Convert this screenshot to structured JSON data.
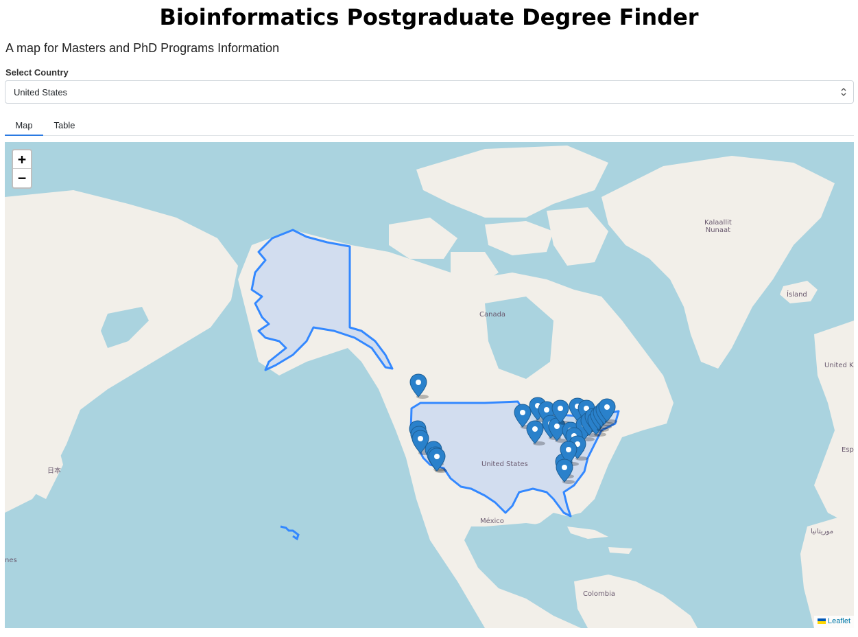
{
  "header": {
    "title": "Bioinformatics Postgraduate Degree Finder",
    "subtitle": "A map for Masters and PhD Programs Information"
  },
  "country_select": {
    "label": "Select Country",
    "selected": "United States"
  },
  "tabs": [
    {
      "label": "Map",
      "active": true
    },
    {
      "label": "Table",
      "active": false
    }
  ],
  "map": {
    "zoom_in": "+",
    "zoom_out": "−",
    "attribution": "Leaflet",
    "labels": {
      "greenland": "Kalaallit\nNunaat",
      "iceland": "Ísland",
      "canada": "Canada",
      "united_states": "United States",
      "mexico": "México",
      "colombia": "Colombia",
      "japan": "日本",
      "united_kingdom": "United Ki",
      "spain": "Esp",
      "morocco": "موريتانيا",
      "left_edge": "nes"
    },
    "colors": {
      "water": "#aad3df",
      "land": "#f2efe9",
      "highlight_fill": "#cdd9f0",
      "highlight_stroke": "#3388ff",
      "marker": "#2a81cb"
    },
    "marker_icon": "map-marker-icon"
  }
}
